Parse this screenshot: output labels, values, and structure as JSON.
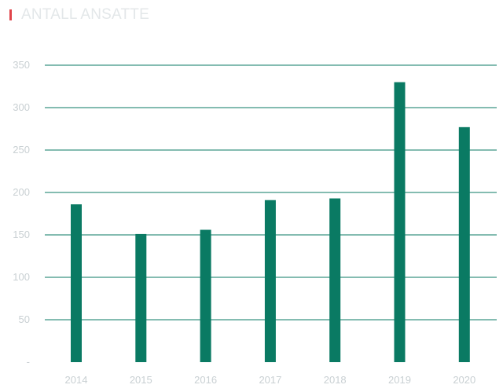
{
  "title": "ANTALL ANSATTE",
  "colors": {
    "accent": "#e0444a",
    "bar": "#0a7a63",
    "grid": "#0a7a63",
    "title": "#e3e7e9",
    "tick_text": "#c9d0d3"
  },
  "chart_data": {
    "type": "bar",
    "title": "ANTALL ANSATTE",
    "xlabel": "",
    "ylabel": "",
    "categories": [
      "2014",
      "2015",
      "2016",
      "2017",
      "2018",
      "2019",
      "2020"
    ],
    "values": [
      186,
      151,
      156,
      191,
      193,
      330,
      277
    ],
    "ylim": [
      0,
      350
    ],
    "yticks": [
      0,
      50,
      100,
      150,
      200,
      250,
      300,
      350
    ],
    "ytick_labels": [
      "-",
      "50",
      "100",
      "150",
      "200",
      "250",
      "300",
      "350"
    ],
    "grid": true,
    "legend": "none"
  }
}
